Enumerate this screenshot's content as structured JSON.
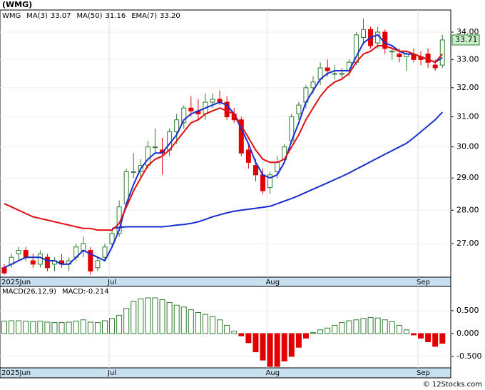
{
  "chart_data": [
    {
      "type": "candlestick",
      "title": "(WMG)",
      "ticker": "WMG",
      "log_scale": true,
      "up_color": "#2e7d2e",
      "down_color": "#e00000",
      "categories": [
        "2025Jun",
        null,
        null,
        null,
        null,
        null,
        null,
        null,
        null,
        null,
        null,
        null,
        null,
        null,
        null,
        "Jul",
        null,
        null,
        null,
        null,
        null,
        null,
        null,
        null,
        null,
        null,
        null,
        null,
        null,
        null,
        null,
        null,
        null,
        null,
        null,
        null,
        null,
        "Aug",
        null,
        null,
        null,
        null,
        null,
        null,
        null,
        null,
        null,
        null,
        null,
        null,
        null,
        null,
        null,
        null,
        null,
        null,
        null,
        null,
        "Sep",
        null,
        null,
        null
      ],
      "open": [
        26.3,
        26.4,
        26.7,
        26.8,
        26.5,
        26.4,
        26.6,
        26.4,
        26.5,
        26.4,
        26.6,
        26.8,
        26.8,
        26.3,
        26.6,
        27.0,
        27.3,
        28.2,
        29.2,
        29.2,
        29.4,
        30.0,
        29.9,
        29.9,
        30.5,
        30.8,
        31.3,
        31.2,
        31.1,
        31.5,
        31.6,
        31.5,
        31.1,
        30.9,
        29.9,
        29.4,
        29.1,
        28.7,
        29.2,
        29.6,
        30.2,
        31.1,
        31.5,
        32.0,
        32.3,
        32.7,
        32.5,
        32.5,
        32.6,
        32.9,
        33.8,
        34.1,
        33.6,
        34.0,
        33.3,
        33.2,
        33.1,
        33.2,
        33.1,
        33.2,
        32.8,
        32.8
      ],
      "high": [
        26.4,
        26.7,
        26.9,
        26.9,
        26.7,
        26.8,
        26.7,
        26.6,
        26.7,
        26.6,
        27.0,
        27.2,
        26.9,
        26.6,
        27.0,
        27.4,
        28.3,
        29.3,
        29.8,
        29.6,
        30.2,
        30.6,
        30.3,
        30.6,
        31.1,
        31.4,
        31.7,
        31.6,
        31.8,
        31.8,
        31.9,
        31.7,
        31.3,
        31.0,
        30.1,
        29.6,
        29.3,
        29.2,
        29.7,
        30.1,
        31.1,
        31.5,
        32.1,
        32.4,
        32.9,
        33.0,
        32.8,
        32.7,
        33.0,
        34.0,
        34.5,
        34.2,
        34.2,
        34.1,
        33.5,
        33.4,
        33.3,
        33.4,
        33.3,
        33.4,
        33.0,
        33.9
      ],
      "low": [
        26.1,
        26.3,
        26.5,
        26.5,
        26.3,
        26.3,
        26.2,
        26.2,
        26.3,
        26.2,
        26.5,
        26.6,
        26.1,
        26.2,
        26.5,
        26.9,
        27.2,
        28.1,
        29.0,
        29.0,
        29.3,
        29.8,
        29.1,
        29.7,
        30.1,
        30.6,
        31.0,
        30.9,
        30.9,
        31.3,
        31.4,
        30.9,
        30.8,
        29.7,
        29.3,
        28.9,
        28.5,
        28.5,
        29.0,
        29.5,
        30.1,
        30.9,
        31.3,
        31.8,
        32.1,
        32.4,
        32.3,
        32.3,
        32.4,
        32.8,
        33.6,
        33.4,
        33.4,
        33.2,
        33.0,
        32.9,
        32.6,
        32.9,
        32.8,
        32.7,
        32.6,
        32.7
      ],
      "close": [
        26.15,
        26.6,
        26.8,
        26.6,
        26.4,
        26.7,
        26.3,
        26.5,
        26.4,
        26.5,
        26.9,
        27.0,
        26.2,
        26.5,
        26.9,
        27.3,
        28.1,
        29.2,
        29.2,
        29.4,
        30.0,
        30.0,
        29.8,
        30.5,
        30.9,
        31.3,
        31.2,
        31.1,
        31.5,
        31.6,
        31.5,
        31.0,
        30.9,
        29.8,
        29.5,
        29.1,
        28.6,
        29.1,
        29.5,
        30.0,
        31.0,
        31.4,
        32.0,
        32.2,
        32.7,
        32.6,
        32.5,
        32.5,
        32.9,
        33.9,
        34.1,
        33.5,
        34.0,
        33.4,
        33.3,
        33.1,
        33.2,
        33.0,
        33.0,
        32.9,
        32.7,
        33.71
      ],
      "series": [
        {
          "name": "MA(3)",
          "legend_value": "33.07",
          "color": "#1a2fd0",
          "values": [
            26.3,
            26.4,
            26.5,
            26.6,
            26.6,
            26.6,
            26.5,
            26.5,
            26.4,
            26.4,
            26.6,
            26.8,
            26.7,
            26.6,
            26.5,
            26.9,
            27.4,
            28.2,
            28.8,
            29.3,
            29.6,
            29.8,
            29.8,
            30.1,
            30.4,
            30.9,
            31.1,
            31.2,
            31.3,
            31.4,
            31.5,
            31.4,
            31.1,
            30.6,
            30.1,
            29.5,
            29.1,
            29.0,
            29.1,
            29.5,
            30.2,
            30.8,
            31.5,
            31.9,
            32.3,
            32.5,
            32.6,
            32.6,
            32.6,
            33.1,
            33.6,
            33.8,
            33.9,
            33.6,
            33.5,
            33.3,
            33.2,
            33.2,
            33.1,
            33.0,
            32.9,
            33.07
          ]
        },
        {
          "name": "MA(50)",
          "legend_value": "31.16",
          "color": "#1a2fd0",
          "values": [
            null,
            null,
            null,
            null,
            null,
            null,
            null,
            null,
            null,
            null,
            null,
            null,
            null,
            null,
            null,
            27.45,
            27.48,
            27.5,
            27.5,
            27.5,
            27.5,
            27.5,
            27.5,
            27.52,
            27.55,
            27.57,
            27.6,
            27.65,
            27.72,
            27.8,
            27.86,
            27.92,
            27.97,
            28.0,
            28.03,
            28.06,
            28.09,
            28.12,
            28.2,
            28.28,
            28.36,
            28.45,
            28.55,
            28.65,
            28.75,
            28.85,
            28.95,
            29.05,
            29.16,
            29.28,
            29.4,
            29.52,
            29.64,
            29.76,
            29.88,
            30.0,
            30.12,
            30.3,
            30.5,
            30.7,
            30.9,
            31.16
          ]
        },
        {
          "name": "EMA(7)",
          "legend_value": "33.20",
          "color": "#e01010",
          "values": [
            28.2,
            28.1,
            28.0,
            27.9,
            27.8,
            27.75,
            27.7,
            27.65,
            27.6,
            27.55,
            27.5,
            27.45,
            27.45,
            27.4,
            27.4,
            27.4,
            27.6,
            28.1,
            28.6,
            29.0,
            29.4,
            29.6,
            29.7,
            29.9,
            30.2,
            30.5,
            30.8,
            30.9,
            31.1,
            31.2,
            31.3,
            31.2,
            31.1,
            30.7,
            30.3,
            29.9,
            29.6,
            29.5,
            29.5,
            29.6,
            30.0,
            30.4,
            30.9,
            31.3,
            31.7,
            32.0,
            32.2,
            32.3,
            32.5,
            32.9,
            33.2,
            33.3,
            33.5,
            33.5,
            33.4,
            33.3,
            33.3,
            33.2,
            33.1,
            33.0,
            32.9,
            33.2
          ]
        }
      ],
      "ylim": [
        26.03,
        34.83
      ],
      "yticks": [
        {
          "value": 27,
          "label": "27.00"
        },
        {
          "value": 28,
          "label": "28.00"
        },
        {
          "value": 29,
          "label": "29.00"
        },
        {
          "value": 30,
          "label": "30.00"
        },
        {
          "value": 31,
          "label": "31.00"
        },
        {
          "value": 32,
          "label": "32.00"
        },
        {
          "value": 33,
          "label": "33.00"
        },
        {
          "value": 34,
          "label": "34.00"
        }
      ]
    },
    {
      "type": "histogram-bar",
      "title": "MACD(26,12,9)",
      "subtitle": "MACD:-0.214",
      "up_color": "#2e7d2e",
      "down_color": "#e00000",
      "categories": [
        "2025Jun",
        null,
        null,
        null,
        null,
        null,
        null,
        null,
        null,
        null,
        null,
        null,
        null,
        null,
        null,
        "Jul",
        null,
        null,
        null,
        null,
        null,
        null,
        null,
        null,
        null,
        null,
        null,
        null,
        null,
        null,
        null,
        null,
        null,
        null,
        null,
        null,
        null,
        "Aug",
        null,
        null,
        null,
        null,
        null,
        null,
        null,
        null,
        null,
        null,
        null,
        null,
        null,
        null,
        null,
        null,
        null,
        null,
        null,
        null,
        "Sep",
        null,
        null,
        null
      ],
      "values": [
        0.27,
        0.28,
        0.28,
        0.27,
        0.26,
        0.27,
        0.25,
        0.24,
        0.24,
        0.25,
        0.27,
        0.3,
        0.25,
        0.24,
        0.28,
        0.33,
        0.4,
        0.55,
        0.7,
        0.76,
        0.78,
        0.78,
        0.74,
        0.68,
        0.62,
        0.58,
        0.52,
        0.46,
        0.42,
        0.37,
        0.3,
        0.18,
        0.05,
        -0.05,
        -0.2,
        -0.4,
        -0.58,
        -0.72,
        -0.72,
        -0.6,
        -0.5,
        -0.3,
        -0.1,
        0.02,
        0.08,
        0.12,
        0.18,
        0.24,
        0.28,
        0.3,
        0.33,
        0.35,
        0.34,
        0.3,
        0.26,
        0.18,
        0.08,
        -0.03,
        -0.1,
        -0.18,
        -0.28,
        -0.214
      ],
      "ylim": [
        -0.75,
        1.03
      ],
      "yticks": [
        {
          "value": 0.5,
          "label": "0.500"
        },
        {
          "value": 0,
          "label": "0.000"
        },
        {
          "value": -0.5,
          "label": "-0.500"
        }
      ]
    }
  ],
  "footer": "© 12Stocks.com"
}
